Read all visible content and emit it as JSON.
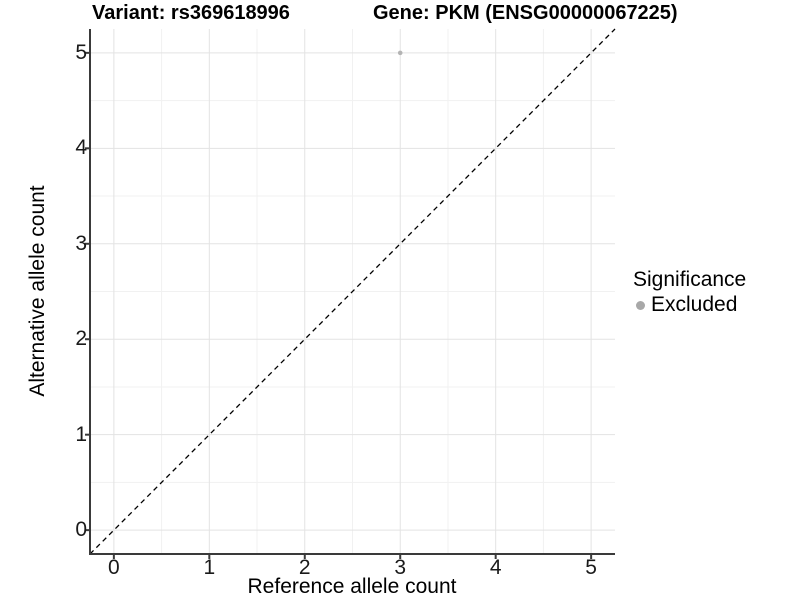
{
  "chart_data": {
    "type": "scatter",
    "title_left": "Variant: rs369618996",
    "title_right": "Gene: PKM (ENSG00000067225)",
    "xlabel": "Reference allele count",
    "ylabel": "Alternative allele count",
    "xlim": [
      -0.25,
      5.25
    ],
    "ylim": [
      -0.25,
      5.25
    ],
    "xticks": [
      0,
      1,
      2,
      3,
      4,
      5
    ],
    "yticks": [
      0,
      1,
      2,
      3,
      4,
      5
    ],
    "grid": "major+minor",
    "points": [
      {
        "x": 3,
        "y": 5,
        "series": "Excluded"
      }
    ],
    "reference_line": {
      "type": "identity",
      "style": "dashed",
      "color": "#000000"
    },
    "legend": {
      "title": "Significance",
      "position": "right",
      "entries": [
        {
          "label": "Excluded",
          "color": "#a8a8a8",
          "marker": "circle"
        }
      ]
    },
    "colors": {
      "point": "#b4b4b4",
      "grid_major": "#e3e3e3",
      "grid_minor": "#f1f1f1",
      "axis": "#3a3a3a",
      "background": "#ffffff"
    }
  }
}
